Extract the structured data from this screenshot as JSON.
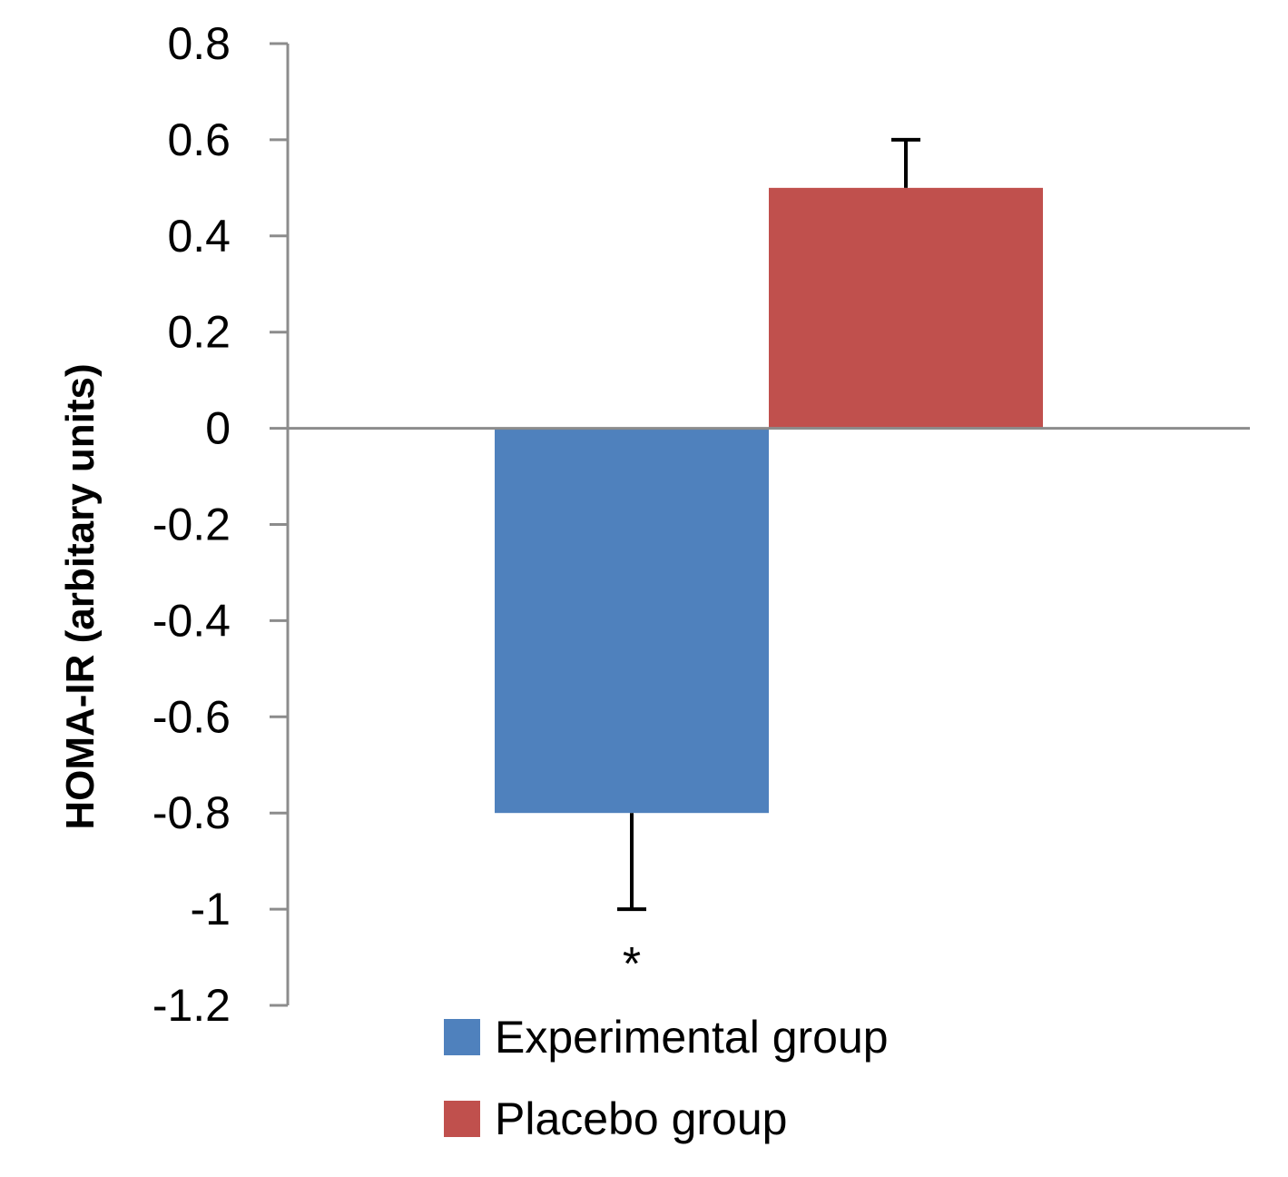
{
  "chart_data": {
    "type": "bar",
    "title": "",
    "xlabel": "",
    "ylabel": "HOMA-IR (arbitary units)",
    "ylim": [
      -1.2,
      0.8
    ],
    "yticks": [
      0.8,
      0.6,
      0.4,
      0.2,
      0,
      -0.2,
      -0.4,
      -0.6,
      -0.8,
      -1,
      -1.2
    ],
    "ytick_labels": [
      "0.8",
      "0.6",
      "0.4",
      "0.2",
      "0",
      "-0.2",
      "-0.4",
      "-0.6",
      "-0.8",
      "-1",
      "-1.2"
    ],
    "grid": false,
    "legend_position": "bottom",
    "series": [
      {
        "name": "Experimental group",
        "value": -0.8,
        "error": 0.2,
        "color": "#4F81BD"
      },
      {
        "name": "Placebo group",
        "value": 0.5,
        "error": 0.1,
        "color": "#C0504D"
      }
    ],
    "annotations": [
      {
        "text": "*",
        "series": "Experimental group"
      }
    ]
  }
}
